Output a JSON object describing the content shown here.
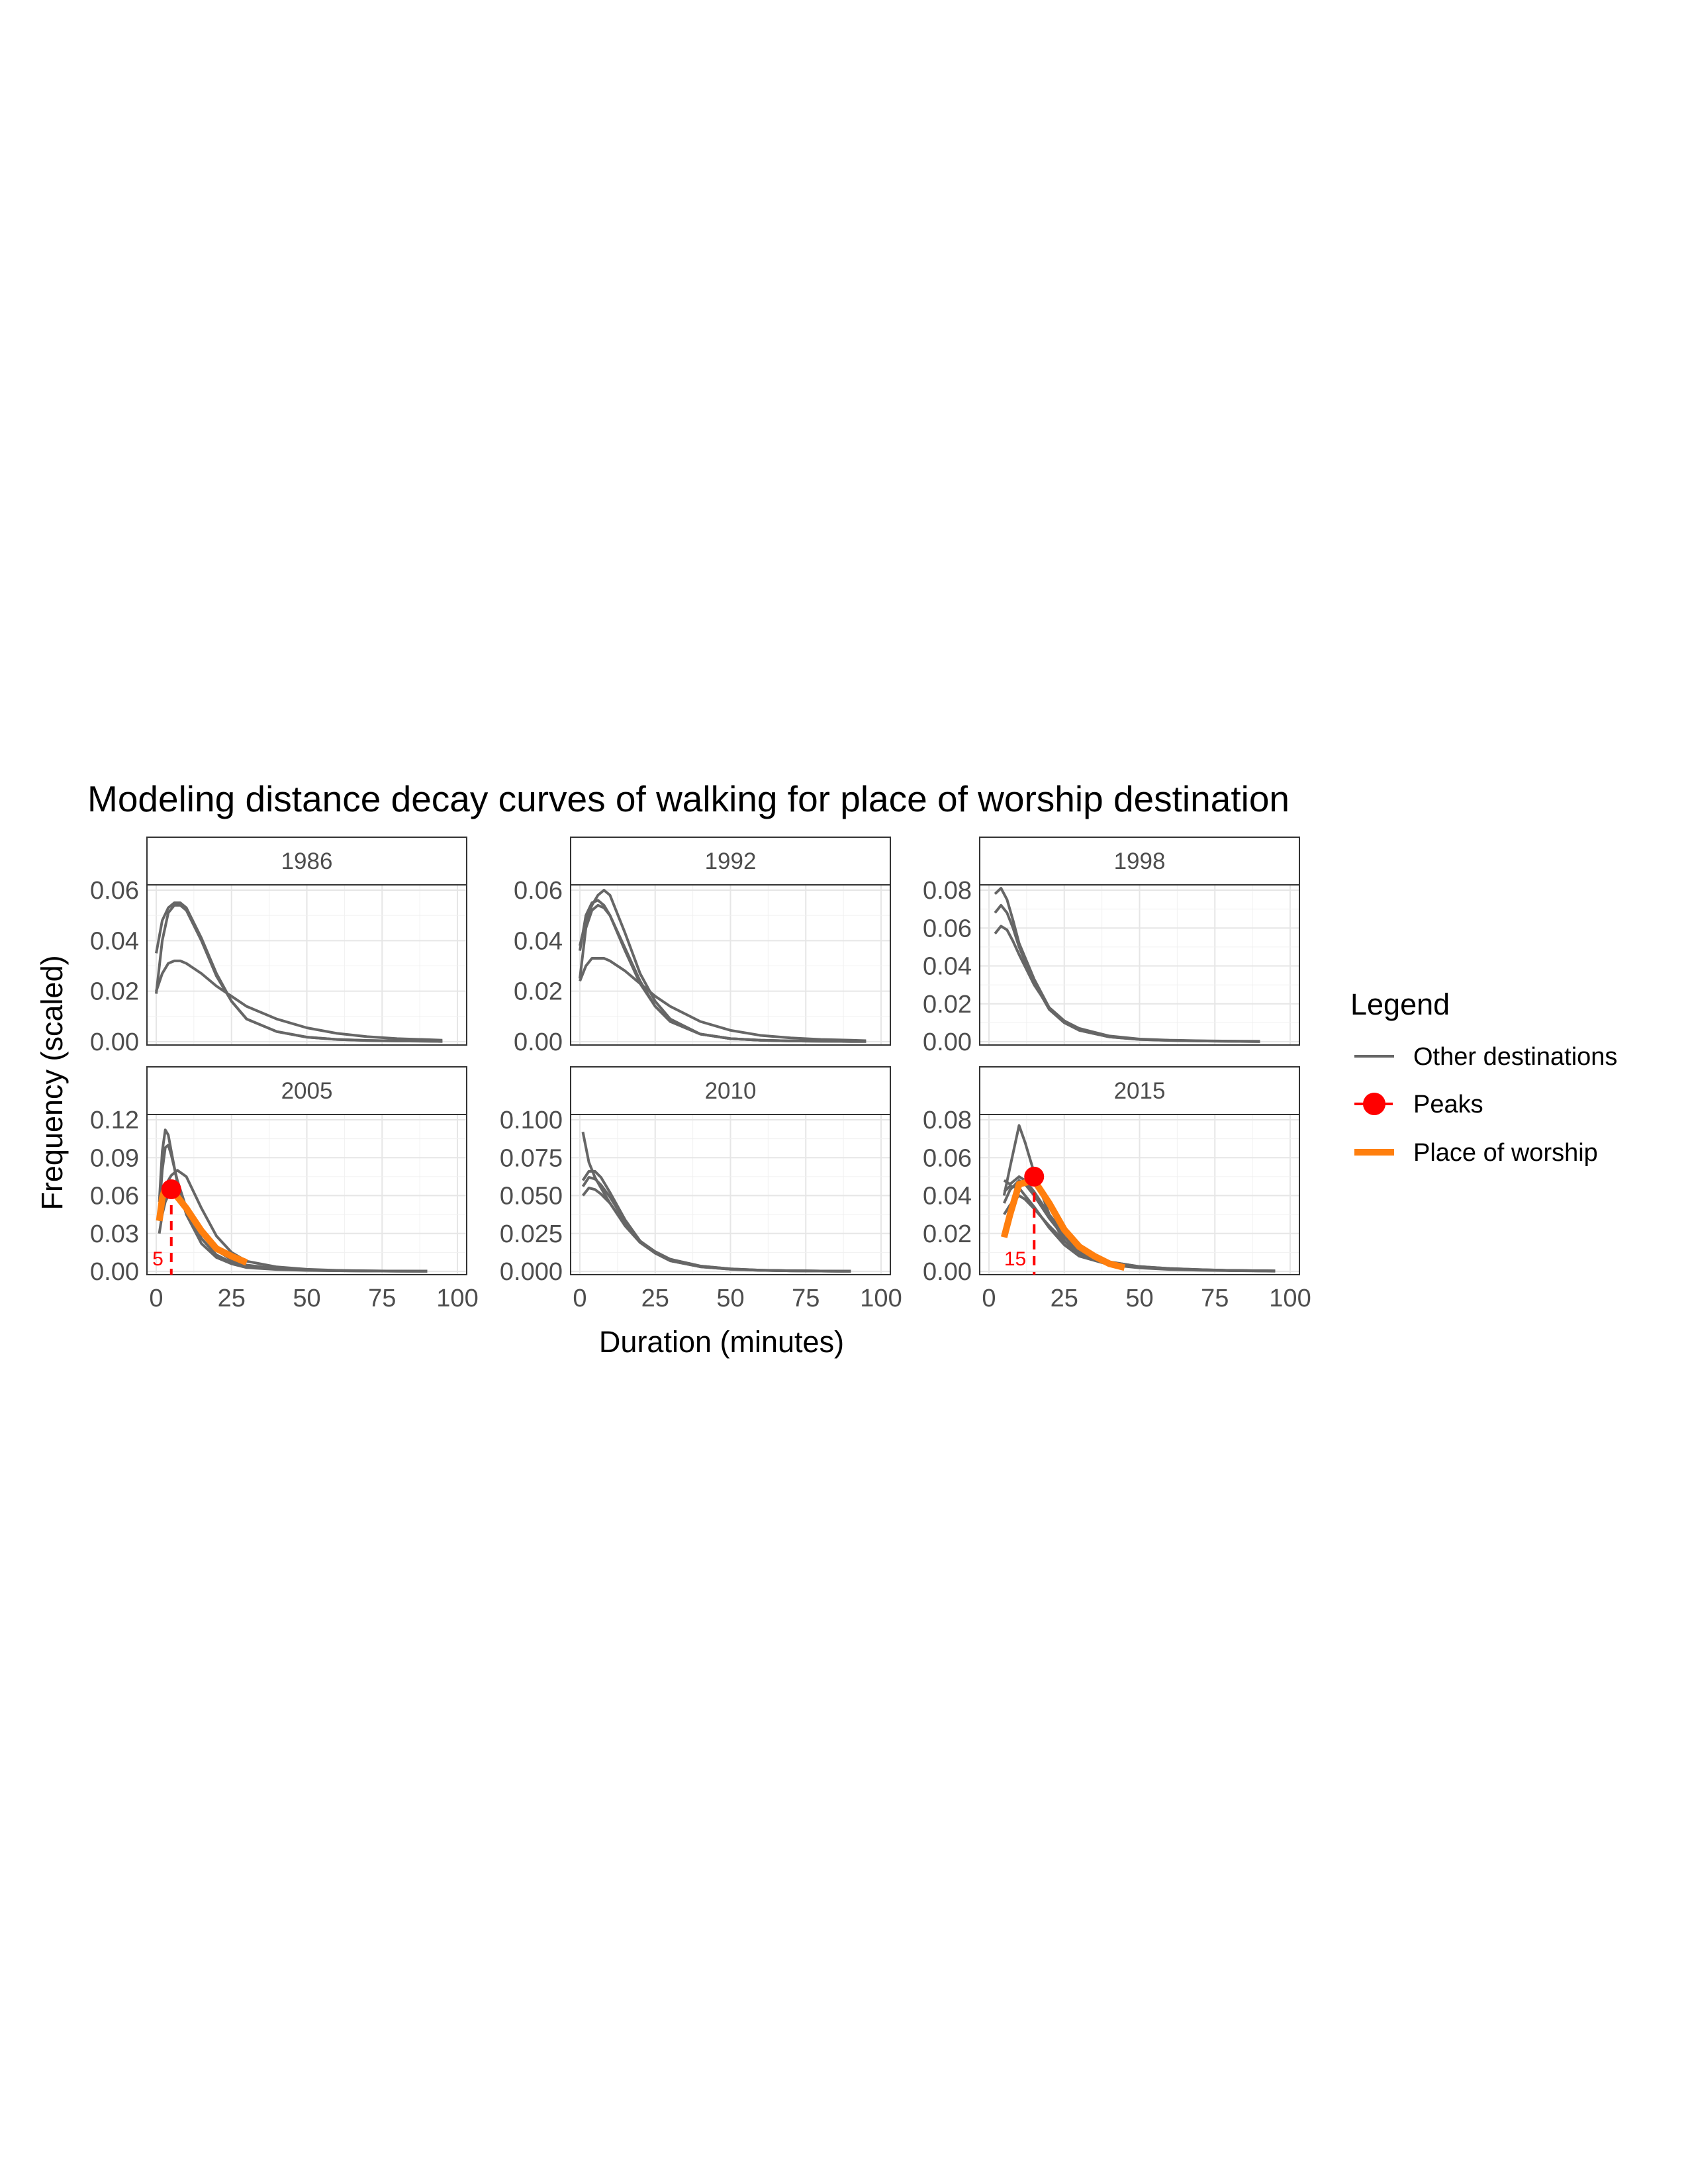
{
  "chart_data": {
    "type": "line",
    "title": "Modeling distance decay curves of walking for place of worship destination",
    "xlabel": "Duration (minutes)",
    "ylabel": "Frequency (scaled)",
    "legend": {
      "title": "Legend",
      "items": [
        {
          "label": "Other destinations",
          "color": "#666666"
        },
        {
          "label": "Peaks",
          "color": "#ff0000"
        },
        {
          "label": "Place of worship",
          "color": "#ff7f0e"
        }
      ]
    },
    "x_ticks": [
      "0",
      "25",
      "50",
      "75",
      "100"
    ],
    "xlim": [
      0,
      100
    ],
    "grid": true,
    "panels": [
      {
        "label": "1986",
        "ylim": [
          0,
          0.06
        ],
        "y_ticks": [
          "0.00",
          "0.02",
          "0.04",
          "0.06"
        ],
        "other_series": [
          {
            "x": [
              0,
              2,
              4,
              6,
              8,
              10,
              15,
              20,
              25,
              30,
              40,
              50,
              60,
              70,
              80,
              90,
              95
            ],
            "y": [
              0.019,
              0.04,
              0.051,
              0.054,
              0.054,
              0.052,
              0.04,
              0.026,
              0.016,
              0.009,
              0.004,
              0.0018,
              0.0009,
              0.0005,
              0.0003,
              0.0002,
              0.0001
            ]
          },
          {
            "x": [
              0,
              2,
              4,
              6,
              8,
              10,
              15,
              20,
              25,
              30,
              40,
              50,
              60,
              70,
              80,
              90,
              95
            ],
            "y": [
              0.035,
              0.048,
              0.053,
              0.055,
              0.055,
              0.053,
              0.041,
              0.027,
              0.016,
              0.009,
              0.004,
              0.0018,
              0.0009,
              0.0005,
              0.0003,
              0.0002,
              0.0001
            ]
          },
          {
            "x": [
              0,
              2,
              4,
              6,
              8,
              10,
              15,
              20,
              25,
              30,
              40,
              50,
              60,
              70,
              80,
              90,
              95
            ],
            "y": [
              0.02,
              0.027,
              0.031,
              0.032,
              0.032,
              0.031,
              0.027,
              0.022,
              0.018,
              0.014,
              0.009,
              0.0055,
              0.0033,
              0.002,
              0.0012,
              0.0008,
              0.0006
            ]
          }
        ]
      },
      {
        "label": "1992",
        "ylim": [
          0,
          0.06
        ],
        "y_ticks": [
          "0.00",
          "0.02",
          "0.04",
          "0.06"
        ],
        "other_series": [
          {
            "x": [
              0,
              2,
              4,
              6,
              8,
              10,
              15,
              20,
              25,
              30,
              40,
              50,
              60,
              70,
              80,
              90,
              95
            ],
            "y": [
              0.025,
              0.045,
              0.052,
              0.054,
              0.053,
              0.05,
              0.037,
              0.024,
              0.014,
              0.008,
              0.003,
              0.0012,
              0.0006,
              0.0003,
              0.0002,
              0.0001,
              0.0001
            ]
          },
          {
            "x": [
              0,
              2,
              4,
              6,
              8,
              10,
              15,
              20,
              25,
              30,
              40,
              50,
              60,
              70,
              80,
              90,
              95
            ],
            "y": [
              0.036,
              0.05,
              0.055,
              0.056,
              0.054,
              0.05,
              0.036,
              0.023,
              0.014,
              0.008,
              0.003,
              0.0012,
              0.0006,
              0.0003,
              0.0002,
              0.0001,
              0.0001
            ]
          },
          {
            "x": [
              0,
              2,
              4,
              6,
              8,
              10,
              15,
              20,
              25,
              30,
              40,
              50,
              60,
              70,
              80,
              90,
              95
            ],
            "y": [
              0.038,
              0.048,
              0.054,
              0.058,
              0.06,
              0.058,
              0.043,
              0.027,
              0.016,
              0.009,
              0.003,
              0.0012,
              0.0006,
              0.0003,
              0.0002,
              0.0001,
              0.0001
            ]
          },
          {
            "x": [
              0,
              2,
              4,
              6,
              8,
              10,
              15,
              20,
              25,
              30,
              40,
              50,
              60,
              70,
              80,
              90,
              95
            ],
            "y": [
              0.024,
              0.03,
              0.033,
              0.033,
              0.033,
              0.032,
              0.028,
              0.023,
              0.018,
              0.014,
              0.008,
              0.0045,
              0.0025,
              0.0015,
              0.0009,
              0.0006,
              0.0004
            ]
          }
        ]
      },
      {
        "label": "1998",
        "ylim": [
          0,
          0.08
        ],
        "y_ticks": [
          "0.00",
          "0.02",
          "0.04",
          "0.06",
          "0.08"
        ],
        "other_series": [
          {
            "x": [
              2,
              4,
              6,
              8,
              10,
              15,
              20,
              25,
              30,
              40,
              50,
              60,
              70,
              80,
              90
            ],
            "y": [
              0.078,
              0.081,
              0.075,
              0.064,
              0.052,
              0.033,
              0.018,
              0.011,
              0.006,
              0.0025,
              0.0012,
              0.0007,
              0.0004,
              0.0002,
              0.0001
            ]
          },
          {
            "x": [
              2,
              4,
              6,
              8,
              10,
              15,
              20,
              25,
              30,
              40,
              50,
              60,
              70,
              80,
              90
            ],
            "y": [
              0.068,
              0.072,
              0.068,
              0.06,
              0.05,
              0.031,
              0.017,
              0.01,
              0.006,
              0.0025,
              0.0012,
              0.0007,
              0.0004,
              0.0002,
              0.0001
            ]
          },
          {
            "x": [
              2,
              4,
              6,
              8,
              10,
              15,
              20,
              25,
              30,
              40,
              50,
              60,
              70,
              80,
              90
            ],
            "y": [
              0.057,
              0.061,
              0.059,
              0.053,
              0.046,
              0.03,
              0.018,
              0.011,
              0.007,
              0.003,
              0.0014,
              0.0008,
              0.0005,
              0.0003,
              0.0002
            ]
          }
        ]
      },
      {
        "label": "2005",
        "ylim": [
          0,
          0.12
        ],
        "y_ticks": [
          "0.00",
          "0.03",
          "0.06",
          "0.09",
          "0.12"
        ],
        "other_series": [
          {
            "x": [
              1,
              2,
              3,
              4,
              5,
              7,
              10,
              15,
              20,
              25,
              30,
              40,
              50,
              60,
              70,
              80,
              90
            ],
            "y": [
              0.055,
              0.095,
              0.112,
              0.108,
              0.095,
              0.07,
              0.045,
              0.022,
              0.011,
              0.006,
              0.003,
              0.0015,
              0.0008,
              0.0005,
              0.0003,
              0.0002,
              0.0001
            ]
          },
          {
            "x": [
              1,
              2,
              3,
              4,
              5,
              7,
              10,
              15,
              20,
              25,
              30,
              40,
              50,
              60,
              70,
              80,
              90
            ],
            "y": [
              0.048,
              0.08,
              0.098,
              0.1,
              0.092,
              0.072,
              0.05,
              0.026,
              0.013,
              0.007,
              0.004,
              0.0018,
              0.0009,
              0.0005,
              0.0003,
              0.0002,
              0.0001
            ]
          },
          {
            "x": [
              1,
              2,
              3,
              4,
              5,
              7,
              10,
              15,
              20,
              25,
              30,
              40,
              50,
              60,
              70,
              80,
              90
            ],
            "y": [
              0.04,
              0.058,
              0.067,
              0.072,
              0.076,
              0.08,
              0.075,
              0.05,
              0.028,
              0.015,
              0.008,
              0.0035,
              0.0016,
              0.0008,
              0.0004,
              0.0002,
              0.0001
            ]
          },
          {
            "x": [
              1,
              2,
              3,
              4,
              5,
              7,
              10,
              15,
              20,
              25,
              30,
              40,
              50,
              60,
              70,
              80,
              90
            ],
            "y": [
              0.03,
              0.045,
              0.055,
              0.06,
              0.062,
              0.06,
              0.052,
              0.032,
              0.017,
              0.009,
              0.005,
              0.0022,
              0.0011,
              0.0006,
              0.0003,
              0.0002,
              0.0001
            ]
          }
        ],
        "focus_series": {
          "x": [
            1,
            2,
            3,
            5,
            10,
            15,
            20,
            25,
            30
          ],
          "y": [
            0.04,
            0.058,
            0.066,
            0.065,
            0.05,
            0.032,
            0.018,
            0.012,
            0.007
          ]
        },
        "peak": {
          "x": 5,
          "y": 0.065,
          "label": "5"
        }
      },
      {
        "label": "2010",
        "ylim": [
          0,
          0.1
        ],
        "y_ticks": [
          "0.000",
          "0.025",
          "0.050",
          "0.075",
          "0.100"
        ],
        "other_series": [
          {
            "x": [
              1,
              3,
              5,
              7,
              10,
              15,
              20,
              25,
              30,
              40,
              50,
              60,
              70,
              80,
              90
            ],
            "y": [
              0.092,
              0.072,
              0.062,
              0.055,
              0.045,
              0.03,
              0.019,
              0.012,
              0.008,
              0.0035,
              0.0016,
              0.0008,
              0.0004,
              0.0002,
              0.0001
            ]
          },
          {
            "x": [
              1,
              3,
              5,
              7,
              10,
              15,
              20,
              25,
              30,
              40,
              50,
              60,
              70,
              80,
              90
            ],
            "y": [
              0.06,
              0.066,
              0.066,
              0.062,
              0.052,
              0.034,
              0.02,
              0.012,
              0.007,
              0.003,
              0.0014,
              0.0007,
              0.0004,
              0.0002,
              0.0001
            ]
          },
          {
            "x": [
              1,
              3,
              5,
              7,
              10,
              15,
              20,
              25,
              30,
              40,
              50,
              60,
              70,
              80,
              90
            ],
            "y": [
              0.056,
              0.062,
              0.061,
              0.057,
              0.049,
              0.033,
              0.02,
              0.012,
              0.007,
              0.003,
              0.0014,
              0.0007,
              0.0004,
              0.0002,
              0.0001
            ]
          },
          {
            "x": [
              1,
              3,
              5,
              7,
              10,
              15,
              20,
              25,
              30,
              40,
              50,
              60,
              70,
              80,
              90
            ],
            "y": [
              0.05,
              0.055,
              0.054,
              0.051,
              0.045,
              0.031,
              0.02,
              0.013,
              0.008,
              0.0035,
              0.0016,
              0.0008,
              0.0004,
              0.0002,
              0.0001
            ]
          }
        ]
      },
      {
        "label": "2015",
        "ylim": [
          0,
          0.08
        ],
        "y_ticks": [
          "0.00",
          "0.02",
          "0.04",
          "0.06",
          "0.08"
        ],
        "other_series": [
          {
            "x": [
              5,
              7,
              10,
              12,
              15,
              20,
              25,
              30,
              40,
              50,
              60,
              70,
              80,
              90,
              95
            ],
            "y": [
              0.04,
              0.055,
              0.077,
              0.068,
              0.052,
              0.03,
              0.016,
              0.009,
              0.004,
              0.002,
              0.0012,
              0.0008,
              0.0005,
              0.0003,
              0.0002
            ]
          },
          {
            "x": [
              5,
              7,
              10,
              12,
              15,
              20,
              25,
              30,
              40,
              50,
              60,
              70,
              80,
              90,
              95
            ],
            "y": [
              0.048,
              0.046,
              0.05,
              0.048,
              0.042,
              0.03,
              0.02,
              0.012,
              0.005,
              0.0025,
              0.0015,
              0.0009,
              0.0005,
              0.0003,
              0.0002
            ]
          },
          {
            "x": [
              5,
              7,
              10,
              12,
              15,
              20,
              25,
              30,
              40,
              50,
              60,
              70,
              80,
              90,
              95
            ],
            "y": [
              0.036,
              0.043,
              0.048,
              0.046,
              0.04,
              0.028,
              0.018,
              0.011,
              0.005,
              0.0025,
              0.0015,
              0.0009,
              0.0005,
              0.0003,
              0.0002
            ]
          },
          {
            "x": [
              5,
              7,
              10,
              12,
              15,
              20,
              25,
              30,
              40,
              50,
              60,
              70,
              80,
              90,
              95
            ],
            "y": [
              0.03,
              0.035,
              0.04,
              0.038,
              0.033,
              0.024,
              0.016,
              0.01,
              0.0045,
              0.0022,
              0.0013,
              0.0008,
              0.0005,
              0.0003,
              0.0002
            ]
          },
          {
            "x": [
              5,
              7,
              10,
              12,
              15,
              20,
              25,
              30,
              40,
              50,
              60,
              70,
              80,
              90,
              95
            ],
            "y": [
              0.042,
              0.045,
              0.044,
              0.04,
              0.034,
              0.023,
              0.014,
              0.008,
              0.0035,
              0.0018,
              0.001,
              0.0006,
              0.0004,
              0.0002,
              0.0001
            ]
          }
        ],
        "focus_series": {
          "x": [
            5,
            7,
            10,
            15,
            20,
            25,
            30,
            35,
            40,
            45
          ],
          "y": [
            0.018,
            0.03,
            0.046,
            0.048,
            0.036,
            0.022,
            0.013,
            0.008,
            0.004,
            0.002
          ]
        },
        "peak": {
          "x": 15,
          "y": 0.05,
          "label": "15"
        }
      }
    ]
  }
}
